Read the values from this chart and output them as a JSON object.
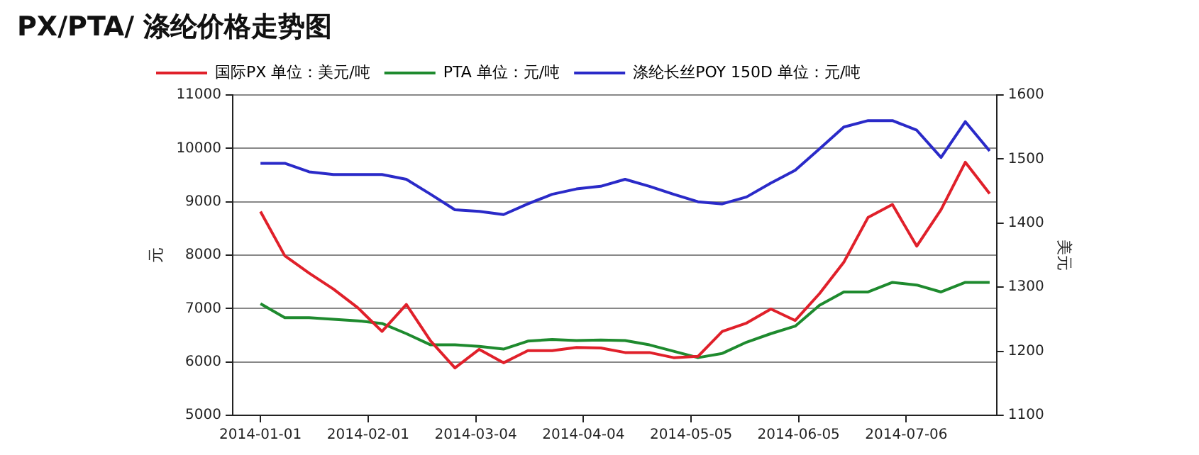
{
  "chart_data": {
    "type": "line",
    "title": "PX/PTA/ 涤纶价格走势图",
    "ylabel": "元",
    "y2label": "美元",
    "x": [
      "2014-01-01",
      "2014-01-08",
      "2014-01-15",
      "2014-01-22",
      "2014-01-29",
      "2014-02-05",
      "2014-02-12",
      "2014-02-19",
      "2014-02-26",
      "2014-03-05",
      "2014-03-12",
      "2014-03-19",
      "2014-03-26",
      "2014-04-02",
      "2014-04-09",
      "2014-04-16",
      "2014-04-23",
      "2014-04-30",
      "2014-05-07",
      "2014-05-14",
      "2014-05-21",
      "2014-05-28",
      "2014-06-04",
      "2014-06-11",
      "2014-06-18",
      "2014-06-25",
      "2014-07-02",
      "2014-07-09",
      "2014-07-16",
      "2014-07-23",
      "2014-07-30"
    ],
    "series": [
      {
        "name": "国际PX 单位：美元/吨",
        "color": "#e0202a",
        "axis": "y2",
        "values": [
          1418,
          1349,
          1322,
          1297,
          1268,
          1231,
          1273,
          1216,
          1174,
          1203,
          1182,
          1201,
          1201,
          1206,
          1205,
          1198,
          1198,
          1190,
          1192,
          1231,
          1244,
          1266,
          1248,
          1290,
          1339,
          1409,
          1429,
          1364,
          1421,
          1495,
          1446
        ]
      },
      {
        "name": "PTA 单位：元/吨",
        "color": "#1e8a2e",
        "values": [
          7090,
          6830,
          6830,
          6800,
          6770,
          6720,
          6530,
          6320,
          6320,
          6290,
          6240,
          6390,
          6420,
          6400,
          6410,
          6400,
          6320,
          6200,
          6080,
          6160,
          6370,
          6530,
          6670,
          7060,
          7310,
          7310,
          7490,
          7440,
          7310,
          7490,
          7490
        ]
      },
      {
        "name": "涤纶长丝POY 150D 单位：元/吨",
        "color": "#2a2ac8",
        "values": [
          9720,
          9720,
          9560,
          9510,
          9510,
          9510,
          9420,
          9140,
          8850,
          8820,
          8760,
          8960,
          9140,
          9240,
          9290,
          9420,
          9290,
          9140,
          9000,
          8960,
          9090,
          9350,
          9590,
          9990,
          10400,
          10520,
          10520,
          10340,
          9830,
          10500,
          9950
        ]
      }
    ],
    "xlim": [
      "2013-12-24",
      "2014-08-01"
    ],
    "xticks": [
      "2014-01-01",
      "2014-02-01",
      "2014-03-04",
      "2014-04-04",
      "2014-05-05",
      "2014-06-05",
      "2014-07-06"
    ],
    "ylim": [
      5000,
      11000
    ],
    "yticks": [
      5000,
      6000,
      7000,
      8000,
      9000,
      10000,
      11000
    ],
    "y2lim": [
      1100,
      1600
    ],
    "y2ticks": [
      1100,
      1200,
      1300,
      1400,
      1500,
      1600
    ],
    "grid": "y",
    "legend": "top",
    "marker": "none",
    "line_style": "solid"
  }
}
